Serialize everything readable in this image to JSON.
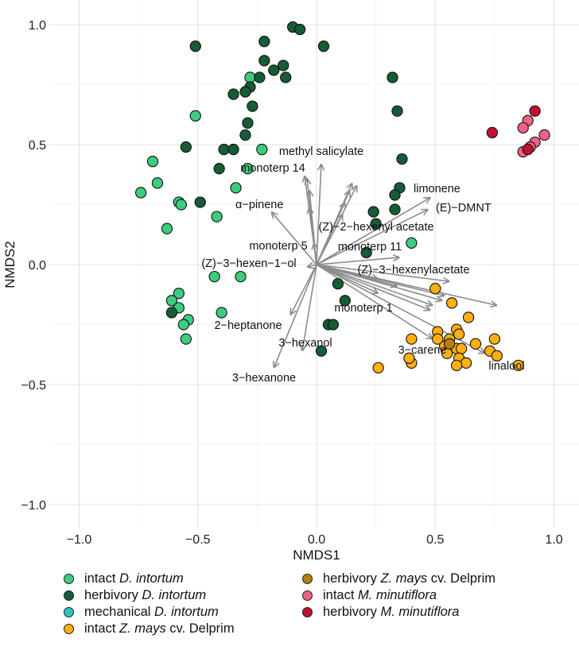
{
  "chart_data": {
    "type": "scatter",
    "xlabel": "NMDS1",
    "ylabel": "NMDS2",
    "xlim": [
      -1.1,
      1.1
    ],
    "ylim": [
      -1.1,
      1.1
    ],
    "x_ticks": [
      "−1.0",
      "−0.5",
      "0.0",
      "0.5",
      "1.0"
    ],
    "x_tick_values": [
      -1,
      -0.5,
      0,
      0.5,
      1
    ],
    "y_ticks": [
      "−1.0",
      "−0.5",
      "0.0",
      "0.5",
      "1.0"
    ],
    "y_tick_values": [
      -1,
      -0.5,
      0,
      0.5,
      1
    ],
    "grid": true,
    "legend_position": "bottom",
    "series": [
      {
        "prefix": "intact ",
        "species": "D. intortum",
        "suffix": "",
        "color": "#3DCC7E",
        "points": [
          [
            -0.28,
            0.78
          ],
          [
            -0.51,
            0.62
          ],
          [
            -0.23,
            0.48
          ],
          [
            -0.69,
            0.43
          ],
          [
            -0.29,
            0.4
          ],
          [
            -0.67,
            0.34
          ],
          [
            -0.74,
            0.3
          ],
          [
            -0.58,
            0.26
          ],
          [
            -0.57,
            0.25
          ],
          [
            -0.34,
            0.32
          ],
          [
            -0.42,
            0.2
          ],
          [
            -0.63,
            0.15
          ],
          [
            -0.43,
            -0.05
          ],
          [
            -0.32,
            -0.05
          ],
          [
            -0.58,
            -0.12
          ],
          [
            -0.61,
            -0.15
          ],
          [
            -0.58,
            -0.18
          ],
          [
            -0.4,
            -0.2
          ],
          [
            -0.54,
            -0.23
          ],
          [
            -0.56,
            -0.25
          ],
          [
            -0.55,
            -0.31
          ],
          [
            0.4,
            0.09
          ]
        ]
      },
      {
        "prefix": "herbivory ",
        "species": "D. intortum",
        "suffix": "",
        "color": "#175C36",
        "points": [
          [
            -0.51,
            0.91
          ],
          [
            -0.22,
            0.93
          ],
          [
            -0.1,
            0.99
          ],
          [
            -0.07,
            0.98
          ],
          [
            0.03,
            0.91
          ],
          [
            -0.22,
            0.85
          ],
          [
            -0.18,
            0.81
          ],
          [
            -0.14,
            0.83
          ],
          [
            -0.13,
            0.78
          ],
          [
            -0.24,
            0.78
          ],
          [
            -0.28,
            0.74
          ],
          [
            -0.3,
            0.72
          ],
          [
            -0.35,
            0.71
          ],
          [
            -0.27,
            0.66
          ],
          [
            -0.29,
            0.59
          ],
          [
            -0.3,
            0.54
          ],
          [
            -0.55,
            0.49
          ],
          [
            -0.39,
            0.48
          ],
          [
            -0.35,
            0.48
          ],
          [
            -0.41,
            0.4
          ],
          [
            -0.49,
            0.26
          ],
          [
            0.09,
            -0.08
          ],
          [
            0.12,
            -0.15
          ],
          [
            -0.61,
            -0.2
          ],
          [
            0.05,
            -0.25
          ],
          [
            0.07,
            -0.25
          ],
          [
            0.02,
            -0.36
          ],
          [
            0.36,
            0.44
          ],
          [
            0.35,
            0.32
          ],
          [
            0.33,
            0.29
          ],
          [
            0.24,
            0.22
          ],
          [
            0.33,
            0.23
          ],
          [
            0.25,
            0.17
          ],
          [
            0.21,
            0.05
          ],
          [
            0.32,
            0.78
          ],
          [
            0.34,
            0.64
          ]
        ]
      },
      {
        "prefix": "mechanical ",
        "species": "D. intortum",
        "suffix": "",
        "color": "#33C3C0",
        "points": []
      },
      {
        "prefix": "intact ",
        "species": "Z. mays",
        "suffix": " cv. Delprim",
        "color": "#FFAF0F",
        "points": [
          [
            0.5,
            -0.1
          ],
          [
            0.57,
            -0.16
          ],
          [
            0.64,
            -0.22
          ],
          [
            0.51,
            -0.28
          ],
          [
            0.59,
            -0.27
          ],
          [
            0.6,
            -0.29
          ],
          [
            0.4,
            -0.31
          ],
          [
            0.56,
            -0.31
          ],
          [
            0.54,
            -0.34
          ],
          [
            0.59,
            -0.35
          ],
          [
            0.61,
            -0.35
          ],
          [
            0.67,
            -0.33
          ],
          [
            0.75,
            -0.31
          ],
          [
            0.73,
            -0.36
          ],
          [
            0.76,
            -0.38
          ],
          [
            0.6,
            -0.39
          ],
          [
            0.63,
            -0.41
          ],
          [
            0.4,
            -0.41
          ],
          [
            0.39,
            -0.39
          ],
          [
            0.59,
            -0.42
          ],
          [
            0.85,
            -0.42
          ],
          [
            0.26,
            -0.43
          ],
          [
            0.55,
            -0.37
          ],
          [
            0.51,
            -0.31
          ]
        ]
      },
      {
        "prefix": "herbivory ",
        "species": "Z. mays",
        "suffix": " cv. Delprim",
        "color": "#B57F12",
        "points": [
          [
            0.56,
            -0.33
          ]
        ]
      },
      {
        "prefix": "intact ",
        "species": "M. minutiflora",
        "suffix": "",
        "color": "#EF6385",
        "points": [
          [
            0.89,
            0.6
          ],
          [
            0.87,
            0.57
          ],
          [
            0.96,
            0.54
          ],
          [
            0.92,
            0.51
          ],
          [
            0.9,
            0.49
          ],
          [
            0.87,
            0.47
          ]
        ]
      },
      {
        "prefix": "herbivory ",
        "species": "M. minutiflora",
        "suffix": "",
        "color": "#C01230",
        "points": [
          [
            0.74,
            0.55
          ],
          [
            0.89,
            0.48
          ],
          [
            0.92,
            0.64
          ]
        ]
      }
    ],
    "vectors": [
      {
        "label": "methyl salicylate",
        "x": 0.02,
        "y": 0.42
      },
      {
        "label": "monoterp 14",
        "x": -0.04,
        "y": 0.36
      },
      {
        "label": "α−pinene",
        "x": -0.19,
        "y": 0.22
      },
      {
        "label": "monoterp 5",
        "x": -0.01,
        "y": 0.09
      },
      {
        "label": "(Z)−3−hexen−1−ol",
        "x": -0.04,
        "y": -0.01
      },
      {
        "label": "2−heptanone",
        "x": -0.11,
        "y": -0.21
      },
      {
        "label": "3−hexanone",
        "x": -0.18,
        "y": -0.43
      },
      {
        "label": "3−hexanol",
        "x": -0.06,
        "y": -0.36
      },
      {
        "label": "(Z)−2−hexenyl acetate",
        "x": 0.17,
        "y": 0.33
      },
      {
        "label": "limonene",
        "x": 0.48,
        "y": 0.28
      },
      {
        "label": "(E)−DMNT",
        "x": 0.47,
        "y": 0.23
      },
      {
        "label": "monoterp 11",
        "x": 0.35,
        "y": 0.03
      },
      {
        "label": "(Z)−3−hexenylacetate",
        "x": 0.56,
        "y": -0.07
      },
      {
        "label": "monoterp 1",
        "x": 0.26,
        "y": -0.12
      },
      {
        "label": "3−carene",
        "x": 0.49,
        "y": -0.31
      },
      {
        "label": "linalool",
        "x": 0.71,
        "y": -0.37
      },
      {
        "label": "",
        "x": 0.76,
        "y": -0.17
      },
      {
        "label": "",
        "x": 0.53,
        "y": -0.15
      },
      {
        "label": "",
        "x": 0.49,
        "y": -0.17
      },
      {
        "label": "",
        "x": 0.54,
        "y": -0.13
      },
      {
        "label": "",
        "x": 0.48,
        "y": -0.19
      },
      {
        "label": "",
        "x": -0.05,
        "y": 0.37
      },
      {
        "label": "",
        "x": -0.03,
        "y": 0.31
      },
      {
        "label": "",
        "x": -0.03,
        "y": 0.24
      },
      {
        "label": "",
        "x": 0.15,
        "y": 0.34
      },
      {
        "label": "",
        "x": 0.14,
        "y": 0.31
      },
      {
        "label": "",
        "x": 0.12,
        "y": 0.26
      },
      {
        "label": "",
        "x": 0.11,
        "y": 0.21
      },
      {
        "label": "",
        "x": 0.26,
        "y": -0.06
      },
      {
        "label": "",
        "x": 0.34,
        "y": -0.09
      }
    ],
    "vector_color": "#8C8C8C"
  }
}
